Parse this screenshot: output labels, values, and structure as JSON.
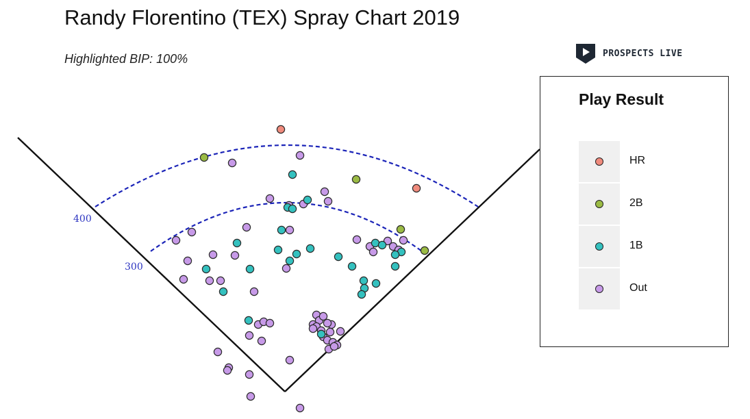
{
  "header": {
    "title": "Randy Florentino (TEX) Spray Chart 2019",
    "subtitle": "Highlighted BIP: 100%"
  },
  "logo": {
    "text": "PROSPECTS LIVE",
    "icon": "play-shield-icon"
  },
  "legend": {
    "title": "Play Result",
    "items": [
      {
        "label": "HR",
        "color": "#f08b7d"
      },
      {
        "label": "2B",
        "color": "#9bbb44"
      },
      {
        "label": "1B",
        "color": "#34c1bf"
      },
      {
        "label": "Out",
        "color": "#c79ae8"
      }
    ]
  },
  "chart_data": {
    "type": "scatter",
    "title": "Randy Florentino (TEX) Spray Chart 2019",
    "subtitle": "Highlighted BIP: 100%",
    "arc_labels": [
      "300",
      "400"
    ],
    "legend_title": "Play Result",
    "legend_position": "right",
    "series": [
      {
        "name": "HR",
        "color": "#f08b7d",
        "points": [
          [
            410,
            189
          ],
          [
            608,
            275
          ]
        ]
      },
      {
        "name": "2B",
        "color": "#9bbb44",
        "points": [
          [
            298,
            230
          ],
          [
            520,
            262
          ],
          [
            585,
            335
          ],
          [
            620,
            366
          ]
        ]
      },
      {
        "name": "1B",
        "color": "#34c1bf",
        "points": [
          [
            427,
            255
          ],
          [
            449,
            292
          ],
          [
            420,
            303
          ],
          [
            427,
            305
          ],
          [
            411,
            336
          ],
          [
            346,
            355
          ],
          [
            406,
            365
          ],
          [
            453,
            363
          ],
          [
            433,
            371
          ],
          [
            423,
            381
          ],
          [
            365,
            393
          ],
          [
            301,
            393
          ],
          [
            494,
            375
          ],
          [
            514,
            389
          ],
          [
            548,
            355
          ],
          [
            558,
            358
          ],
          [
            586,
            368
          ],
          [
            577,
            372
          ],
          [
            577,
            389
          ],
          [
            531,
            410
          ],
          [
            532,
            421
          ],
          [
            528,
            430
          ],
          [
            549,
            414
          ],
          [
            326,
            426
          ],
          [
            363,
            468
          ],
          [
            469,
            488
          ]
        ]
      },
      {
        "name": "Out",
        "color": "#c79ae8",
        "points": [
          [
            438,
            227
          ],
          [
            339,
            238
          ],
          [
            474,
            280
          ],
          [
            479,
            294
          ],
          [
            394,
            290
          ],
          [
            443,
            298
          ],
          [
            422,
            300
          ],
          [
            360,
            332
          ],
          [
            423,
            336
          ],
          [
            280,
            339
          ],
          [
            257,
            351
          ],
          [
            521,
            350
          ],
          [
            540,
            360
          ],
          [
            545,
            368
          ],
          [
            566,
            352
          ],
          [
            574,
            360
          ],
          [
            582,
            365
          ],
          [
            589,
            351
          ],
          [
            311,
            372
          ],
          [
            343,
            373
          ],
          [
            274,
            381
          ],
          [
            418,
            392
          ],
          [
            306,
            410
          ],
          [
            322,
            410
          ],
          [
            268,
            408
          ],
          [
            371,
            426
          ],
          [
            377,
            474
          ],
          [
            385,
            470
          ],
          [
            394,
            472
          ],
          [
            364,
            490
          ],
          [
            382,
            498
          ],
          [
            462,
            460
          ],
          [
            466,
            468
          ],
          [
            472,
            462
          ],
          [
            457,
            474
          ],
          [
            462,
            477
          ],
          [
            484,
            474
          ],
          [
            478,
            472
          ],
          [
            457,
            480
          ],
          [
            469,
            483
          ],
          [
            482,
            485
          ],
          [
            472,
            492
          ],
          [
            497,
            484
          ],
          [
            478,
            497
          ],
          [
            486,
            500
          ],
          [
            492,
            504
          ],
          [
            480,
            510
          ],
          [
            488,
            506
          ],
          [
            318,
            514
          ],
          [
            334,
            537
          ],
          [
            332,
            541
          ],
          [
            423,
            526
          ],
          [
            364,
            547
          ],
          [
            366,
            579
          ],
          [
            438,
            596
          ]
        ]
      }
    ]
  }
}
